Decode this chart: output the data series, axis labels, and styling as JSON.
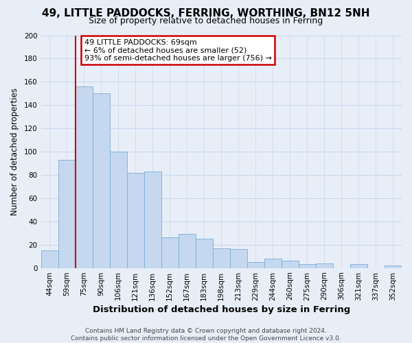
{
  "title": "49, LITTLE PADDOCKS, FERRING, WORTHING, BN12 5NH",
  "subtitle": "Size of property relative to detached houses in Ferring",
  "xlabel": "Distribution of detached houses by size in Ferring",
  "ylabel": "Number of detached properties",
  "categories": [
    "44sqm",
    "59sqm",
    "75sqm",
    "90sqm",
    "106sqm",
    "121sqm",
    "136sqm",
    "152sqm",
    "167sqm",
    "183sqm",
    "198sqm",
    "213sqm",
    "229sqm",
    "244sqm",
    "260sqm",
    "275sqm",
    "290sqm",
    "306sqm",
    "321sqm",
    "337sqm",
    "352sqm"
  ],
  "values": [
    15,
    93,
    156,
    150,
    100,
    82,
    83,
    26,
    29,
    25,
    17,
    16,
    5,
    8,
    6,
    3,
    4,
    0,
    3,
    0,
    2
  ],
  "bar_color": "#c5d8ef",
  "bar_edge_color": "#7aadd4",
  "marker_line_index": 2,
  "marker_label": "49 LITTLE PADDOCKS: 69sqm",
  "annotation_line1": "← 6% of detached houses are smaller (52)",
  "annotation_line2": "93% of semi-detached houses are larger (756) →",
  "annotation_box_color": "#ffffff",
  "annotation_box_edge_color": "#cc0000",
  "marker_line_color": "#cc0000",
  "ylim": [
    0,
    200
  ],
  "yticks": [
    0,
    20,
    40,
    60,
    80,
    100,
    120,
    140,
    160,
    180,
    200
  ],
  "grid_color": "#c8d8ec",
  "background_color": "#e8eef8",
  "plot_bg_color": "#e8eef8",
  "footer_line1": "Contains HM Land Registry data © Crown copyright and database right 2024.",
  "footer_line2": "Contains public sector information licensed under the Open Government Licence v3.0.",
  "title_fontsize": 11,
  "subtitle_fontsize": 9,
  "xlabel_fontsize": 9.5,
  "ylabel_fontsize": 8.5,
  "tick_fontsize": 7.5,
  "footer_fontsize": 6.5,
  "annotation_fontsize": 8
}
